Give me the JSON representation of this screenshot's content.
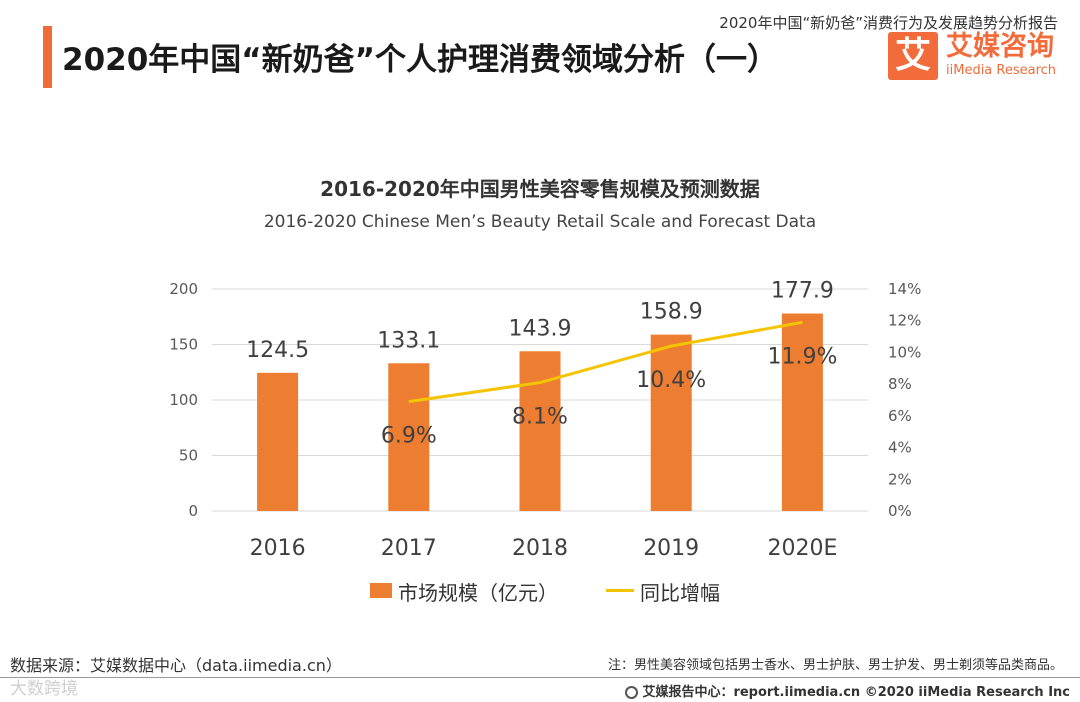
{
  "header": {
    "title": "2020年中国“新奶爸”个人护理消费领域分析（一）",
    "report_name": "2020年中国“新奶爸”消费行为及发展趋势分析报告"
  },
  "logo": {
    "icon_text": "艾",
    "name_cn": "艾媒咨询",
    "name_en": "iiMedia Research"
  },
  "colors": {
    "accent": "#f26b3a",
    "bar": "#ed7d31",
    "line": "#f5c400"
  },
  "chart_data": {
    "type": "bar",
    "title": "2016-2020年中国男性美容零售规模及预测数据",
    "subtitle": "2016-2020 Chinese Men’s Beauty Retail Scale and Forecast Data",
    "categories": [
      "2016",
      "2017",
      "2018",
      "2019",
      "2020E"
    ],
    "series": [
      {
        "name": "市场规模（亿元）",
        "type": "bar",
        "axis": "left",
        "values": [
          124.5,
          133.1,
          143.9,
          158.9,
          177.9
        ],
        "labels": [
          "124.5",
          "133.1",
          "143.9",
          "158.9",
          "177.9"
        ]
      },
      {
        "name": "同比增幅",
        "type": "line",
        "axis": "right",
        "values": [
          null,
          6.9,
          8.1,
          10.4,
          11.9
        ],
        "labels": [
          "",
          "6.9%",
          "8.1%",
          "10.4%",
          "11.9%"
        ]
      }
    ],
    "y_left": {
      "min": 0,
      "max": 200,
      "ticks": [
        "0",
        "50",
        "100",
        "150",
        "200"
      ]
    },
    "y_right": {
      "min": 0,
      "max": 14,
      "ticks": [
        "0%",
        "2%",
        "4%",
        "6%",
        "8%",
        "10%",
        "12%",
        "14%"
      ]
    },
    "grid": true,
    "legend": "bottom"
  },
  "footer": {
    "source": "数据来源：艾媒数据中心（data.iimedia.cn）",
    "note": "注：男性美容领域包括男士香水、男士护肤、男士护发、男士剃须等品类商品。",
    "credit": "艾媒报告中心：report.iimedia.cn  ©2020  iiMedia Research  Inc",
    "watermark": "大数跨境"
  }
}
